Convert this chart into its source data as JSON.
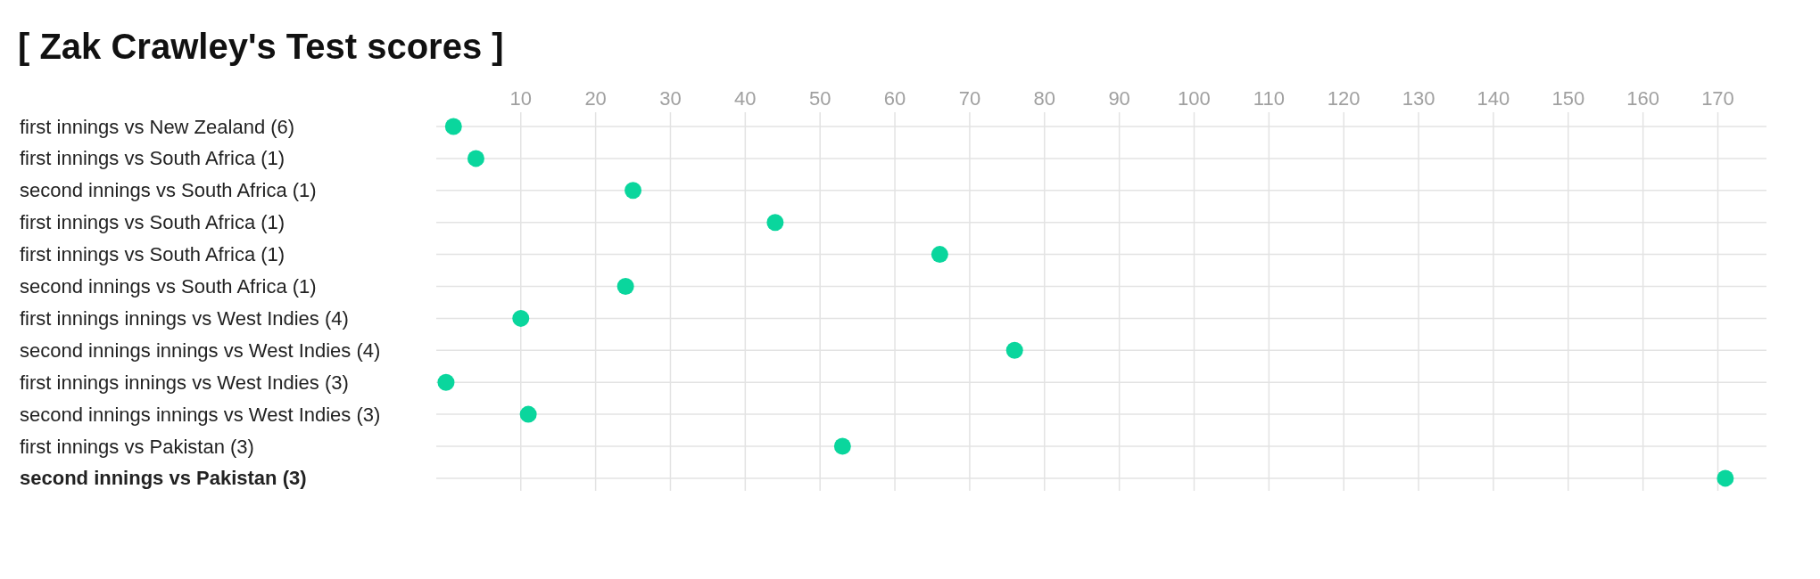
{
  "chart_data": {
    "type": "scatter",
    "title": "[ Zak Crawley's Test scores ]",
    "orientation": "horizontal",
    "categories": [
      "first innings vs New Zealand (6)",
      "first innings vs South Africa (1)",
      "second innings vs South Africa (1)",
      "first innings vs South Africa (1)",
      "first innings vs South Africa (1)",
      "second innings vs South Africa (1)",
      "first innings innings vs West Indies (4)",
      "second innings innings vs West Indies (4)",
      "first innings innings vs West Indies (3)",
      "second innings innings vs West Indies (3)",
      "first innings vs Pakistan (3)",
      "second innings vs Pakistan (3)"
    ],
    "series": [
      {
        "color": "#0ad69d",
        "values": [
          1,
          4,
          25,
          44,
          66,
          24,
          10,
          76,
          0,
          11,
          53,
          171
        ]
      }
    ],
    "xlim": [
      -1.3,
      176.5
    ],
    "xticks": [
      10,
      20,
      30,
      40,
      50,
      60,
      70,
      80,
      90,
      100,
      110,
      120,
      130,
      140,
      150,
      160,
      170
    ],
    "grid": true,
    "marker": "circle"
  }
}
